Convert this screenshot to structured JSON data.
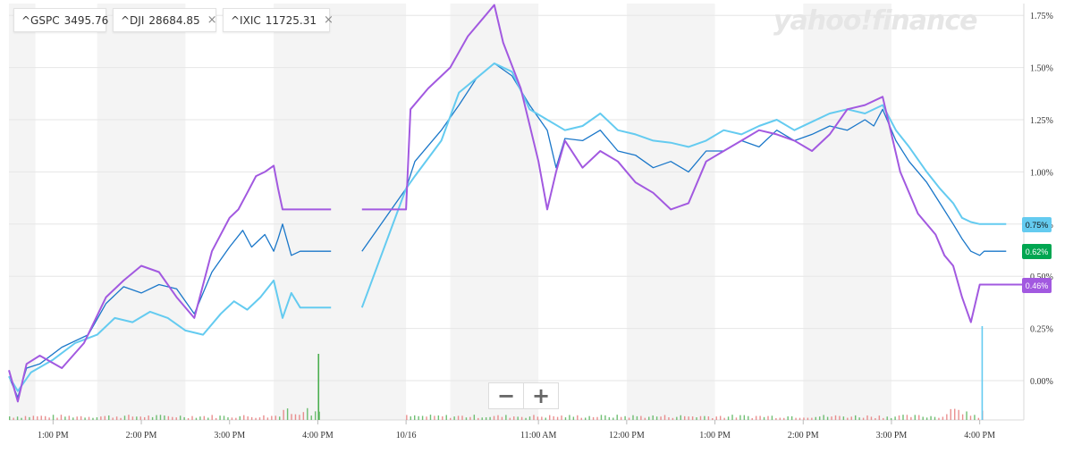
{
  "legend": [
    {
      "symbol": "^GSPC",
      "value": "3495.76",
      "color": "#1a77c9",
      "closable": false
    },
    {
      "symbol": "^DJI",
      "value": "28684.85",
      "color": "#64cbf0",
      "closable": true
    },
    {
      "symbol": "^IXIC",
      "value": "11725.31",
      "color": "#a259e0",
      "closable": true
    }
  ],
  "logo": "yahoo!finance",
  "close_glyph": "×",
  "zoom": {
    "minus": "−",
    "plus": "+"
  },
  "chart_data": {
    "type": "line",
    "ylim": [
      -0.2,
      1.8
    ],
    "y_ticks": [
      0,
      0.25,
      0.5,
      0.75,
      1.0,
      1.25,
      1.5,
      1.75
    ],
    "y_tick_labels": [
      "0.00%",
      "0.25%",
      "0.50%",
      "0.75%",
      "1.00%",
      "1.25%",
      "1.50%",
      "1.75%"
    ],
    "x_ticks": [
      {
        "t": 0.5,
        "label": "1:00 PM"
      },
      {
        "t": 1.5,
        "label": "2:00 PM"
      },
      {
        "t": 2.5,
        "label": "3:00 PM"
      },
      {
        "t": 3.5,
        "label": "4:00 PM"
      },
      {
        "t": 4.5,
        "label": "10/16"
      },
      {
        "t": 6.0,
        "label": "11:00 AM"
      },
      {
        "t": 7.0,
        "label": "12:00 PM"
      },
      {
        "t": 8.0,
        "label": "1:00 PM"
      },
      {
        "t": 9.0,
        "label": "2:00 PM"
      },
      {
        "t": 10.0,
        "label": "3:00 PM"
      },
      {
        "t": 11.0,
        "label": "4:00 PM"
      }
    ],
    "current_labels": [
      {
        "series": "^DJI",
        "text": "0.75%",
        "value": 0.75
      },
      {
        "series": "^GSPC",
        "text": "0.62%",
        "value": 0.62
      },
      {
        "series": "^IXIC",
        "text": "0.46%",
        "value": 0.46
      }
    ],
    "series": [
      {
        "name": "^GSPC",
        "color": "#1a77c9",
        "label_bg": "#00a651",
        "x": [
          0,
          0.1,
          0.2,
          0.35,
          0.6,
          0.9,
          1.1,
          1.3,
          1.5,
          1.7,
          1.9,
          2.1,
          2.3,
          2.5,
          2.65,
          2.75,
          2.9,
          3.0,
          3.05,
          3.1,
          3.2,
          3.3,
          3.5,
          3.65,
          3.7,
          3.75,
          3.85,
          4.0,
          4.5,
          4.6,
          4.9,
          5.1,
          5.3,
          5.5,
          5.7,
          5.9,
          6.1,
          6.2,
          6.3,
          6.5,
          6.7,
          6.9,
          7.1,
          7.3,
          7.5,
          7.7,
          7.9,
          8.1,
          8.3,
          8.5,
          8.7,
          8.9,
          9.1,
          9.3,
          9.5,
          9.7,
          9.8,
          9.9,
          10.05,
          10.2,
          10.4,
          10.55,
          10.7,
          10.8,
          10.9,
          11.0,
          11.05,
          11.1,
          11.2,
          11.3
        ],
        "y": [
          0.02,
          -0.08,
          0.06,
          0.08,
          0.16,
          0.22,
          0.37,
          0.45,
          0.42,
          0.46,
          0.44,
          0.32,
          0.52,
          0.64,
          0.72,
          0.64,
          0.7,
          0.62,
          0.68,
          0.75,
          0.6,
          0.62,
          0.62,
          0.62,
          null,
          0.62,
          null,
          0.62,
          0.92,
          1.05,
          1.2,
          1.32,
          1.45,
          1.52,
          1.46,
          1.32,
          1.2,
          1.02,
          1.16,
          1.15,
          1.2,
          1.1,
          1.08,
          1.02,
          1.05,
          1.0,
          1.1,
          1.1,
          1.15,
          1.12,
          1.2,
          1.15,
          1.18,
          1.22,
          1.2,
          1.25,
          1.22,
          1.3,
          1.15,
          1.05,
          0.95,
          0.85,
          0.75,
          0.68,
          0.62,
          0.6,
          0.62,
          0.62,
          0.62,
          0.62
        ]
      },
      {
        "name": "^DJI",
        "color": "#64cbf0",
        "label_bg": "#64cbf0",
        "x": [
          0,
          0.1,
          0.25,
          0.5,
          0.75,
          1.0,
          1.2,
          1.4,
          1.6,
          1.8,
          2.0,
          2.2,
          2.4,
          2.55,
          2.7,
          2.85,
          3.0,
          3.1,
          3.2,
          3.3,
          3.5,
          3.65,
          3.7,
          3.75,
          3.85,
          4.0,
          4.5,
          4.6,
          4.9,
          5.1,
          5.3,
          5.5,
          5.7,
          5.9,
          6.1,
          6.3,
          6.5,
          6.7,
          6.9,
          7.1,
          7.3,
          7.5,
          7.7,
          7.9,
          8.1,
          8.3,
          8.5,
          8.7,
          8.9,
          9.1,
          9.3,
          9.5,
          9.7,
          9.9,
          10.05,
          10.2,
          10.4,
          10.55,
          10.7,
          10.8,
          10.9,
          11.0,
          11.05,
          11.1,
          11.2,
          11.3
        ],
        "y": [
          0.02,
          -0.05,
          0.04,
          0.1,
          0.18,
          0.22,
          0.3,
          0.28,
          0.33,
          0.3,
          0.24,
          0.22,
          0.32,
          0.38,
          0.34,
          0.4,
          0.48,
          0.3,
          0.42,
          0.35,
          0.35,
          0.35,
          null,
          0.35,
          null,
          0.35,
          0.92,
          0.98,
          1.15,
          1.38,
          1.45,
          1.52,
          1.48,
          1.3,
          1.25,
          1.2,
          1.22,
          1.28,
          1.2,
          1.18,
          1.15,
          1.14,
          1.12,
          1.15,
          1.2,
          1.18,
          1.22,
          1.25,
          1.2,
          1.24,
          1.28,
          1.3,
          1.28,
          1.32,
          1.2,
          1.12,
          1.0,
          0.92,
          0.85,
          0.78,
          0.76,
          0.75,
          0.75,
          0.75,
          0.75,
          0.75
        ]
      },
      {
        "name": "^IXIC",
        "color": "#a259e0",
        "label_bg": "#a259e0",
        "x": [
          0,
          0.1,
          0.2,
          0.35,
          0.6,
          0.85,
          1.1,
          1.3,
          1.5,
          1.7,
          1.9,
          2.1,
          2.3,
          2.5,
          2.6,
          2.7,
          2.8,
          2.9,
          3.0,
          3.05,
          3.1,
          3.2,
          3.3,
          3.5,
          3.65,
          3.7,
          3.75,
          3.85,
          4.0,
          4.5,
          4.55,
          4.75,
          5.0,
          5.2,
          5.4,
          5.5,
          5.6,
          5.8,
          6.0,
          6.1,
          6.2,
          6.3,
          6.5,
          6.7,
          6.9,
          7.1,
          7.3,
          7.5,
          7.7,
          7.9,
          8.1,
          8.3,
          8.5,
          8.7,
          8.9,
          9.1,
          9.3,
          9.5,
          9.7,
          9.9,
          10.0,
          10.1,
          10.3,
          10.5,
          10.6,
          10.7,
          10.8,
          10.9,
          11.0,
          11.1,
          11.2,
          11.3,
          11.5
        ],
        "y": [
          0.05,
          -0.1,
          0.08,
          0.12,
          0.06,
          0.18,
          0.4,
          0.48,
          0.55,
          0.52,
          0.4,
          0.3,
          0.62,
          0.78,
          0.82,
          0.9,
          0.98,
          1.0,
          1.03,
          0.92,
          0.82,
          0.82,
          0.82,
          0.82,
          0.82,
          null,
          0.82,
          null,
          0.82,
          0.82,
          1.3,
          1.4,
          1.5,
          1.65,
          1.75,
          1.8,
          1.62,
          1.4,
          1.05,
          0.82,
          1.0,
          1.15,
          1.02,
          1.1,
          1.05,
          0.95,
          0.9,
          0.82,
          0.85,
          1.05,
          1.1,
          1.15,
          1.2,
          1.18,
          1.15,
          1.1,
          1.18,
          1.3,
          1.32,
          1.36,
          1.18,
          1.0,
          0.8,
          0.7,
          0.6,
          0.55,
          0.4,
          0.28,
          0.46,
          0.46,
          0.46,
          0.46,
          0.46
        ]
      }
    ]
  }
}
